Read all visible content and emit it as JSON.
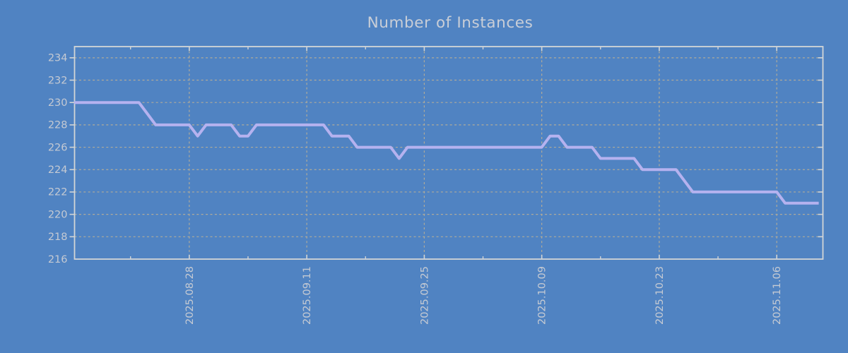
{
  "title": "Number of Instances",
  "colors": {
    "background": "#5083c2",
    "line": "#b5b2ef",
    "grid": "#b0ab9a",
    "axis_border": "#d2d5d6",
    "tick_text": "#c5cad3",
    "title_text": "#c9ced7"
  },
  "chart_data": {
    "type": "line",
    "title": "Number of Instances",
    "xlabel": "",
    "ylabel": "",
    "grid": true,
    "legend": "none",
    "ylim": [
      216,
      235
    ],
    "y_ticks": [
      216,
      218,
      220,
      222,
      224,
      226,
      228,
      230,
      232,
      234
    ],
    "x_start_date": "2025-08-14",
    "x_end_date": "2025-11-11",
    "x_interval": "daily",
    "xlim_day_index": [
      0.33,
      89.5
    ],
    "x_ticks_major": [
      {
        "label": "2025.08.28",
        "day_index": 14
      },
      {
        "label": "2025.09.11",
        "day_index": 28
      },
      {
        "label": "2025.09.25",
        "day_index": 42
      },
      {
        "label": "2025.10.09",
        "day_index": 56
      },
      {
        "label": "2025.10.23",
        "day_index": 70
      },
      {
        "label": "2025.11.06",
        "day_index": 84
      }
    ],
    "x_minor_tick_day_indices": [
      7,
      21,
      35,
      49,
      63,
      77
    ],
    "series": [
      {
        "name": "instances",
        "start_date": "2025-08-14",
        "cadence_days": 1,
        "values": [
          230,
          230,
          230,
          230,
          230,
          230,
          230,
          230,
          230,
          229,
          228,
          228,
          228,
          228,
          228,
          227,
          228,
          228,
          228,
          228,
          227,
          227,
          228,
          228,
          228,
          228,
          228,
          228,
          228,
          228,
          228,
          227,
          227,
          227,
          226,
          226,
          226,
          226,
          226,
          225,
          226,
          226,
          226,
          226,
          226,
          226,
          226,
          226,
          226,
          226,
          226,
          226,
          226,
          226,
          226,
          226,
          226,
          227,
          227,
          226,
          226,
          226,
          226,
          225,
          225,
          225,
          225,
          225,
          224,
          224,
          224,
          224,
          224,
          223,
          222,
          222,
          222,
          222,
          222,
          222,
          222,
          222,
          222,
          222,
          222,
          221,
          221,
          221,
          221,
          221
        ]
      }
    ]
  }
}
